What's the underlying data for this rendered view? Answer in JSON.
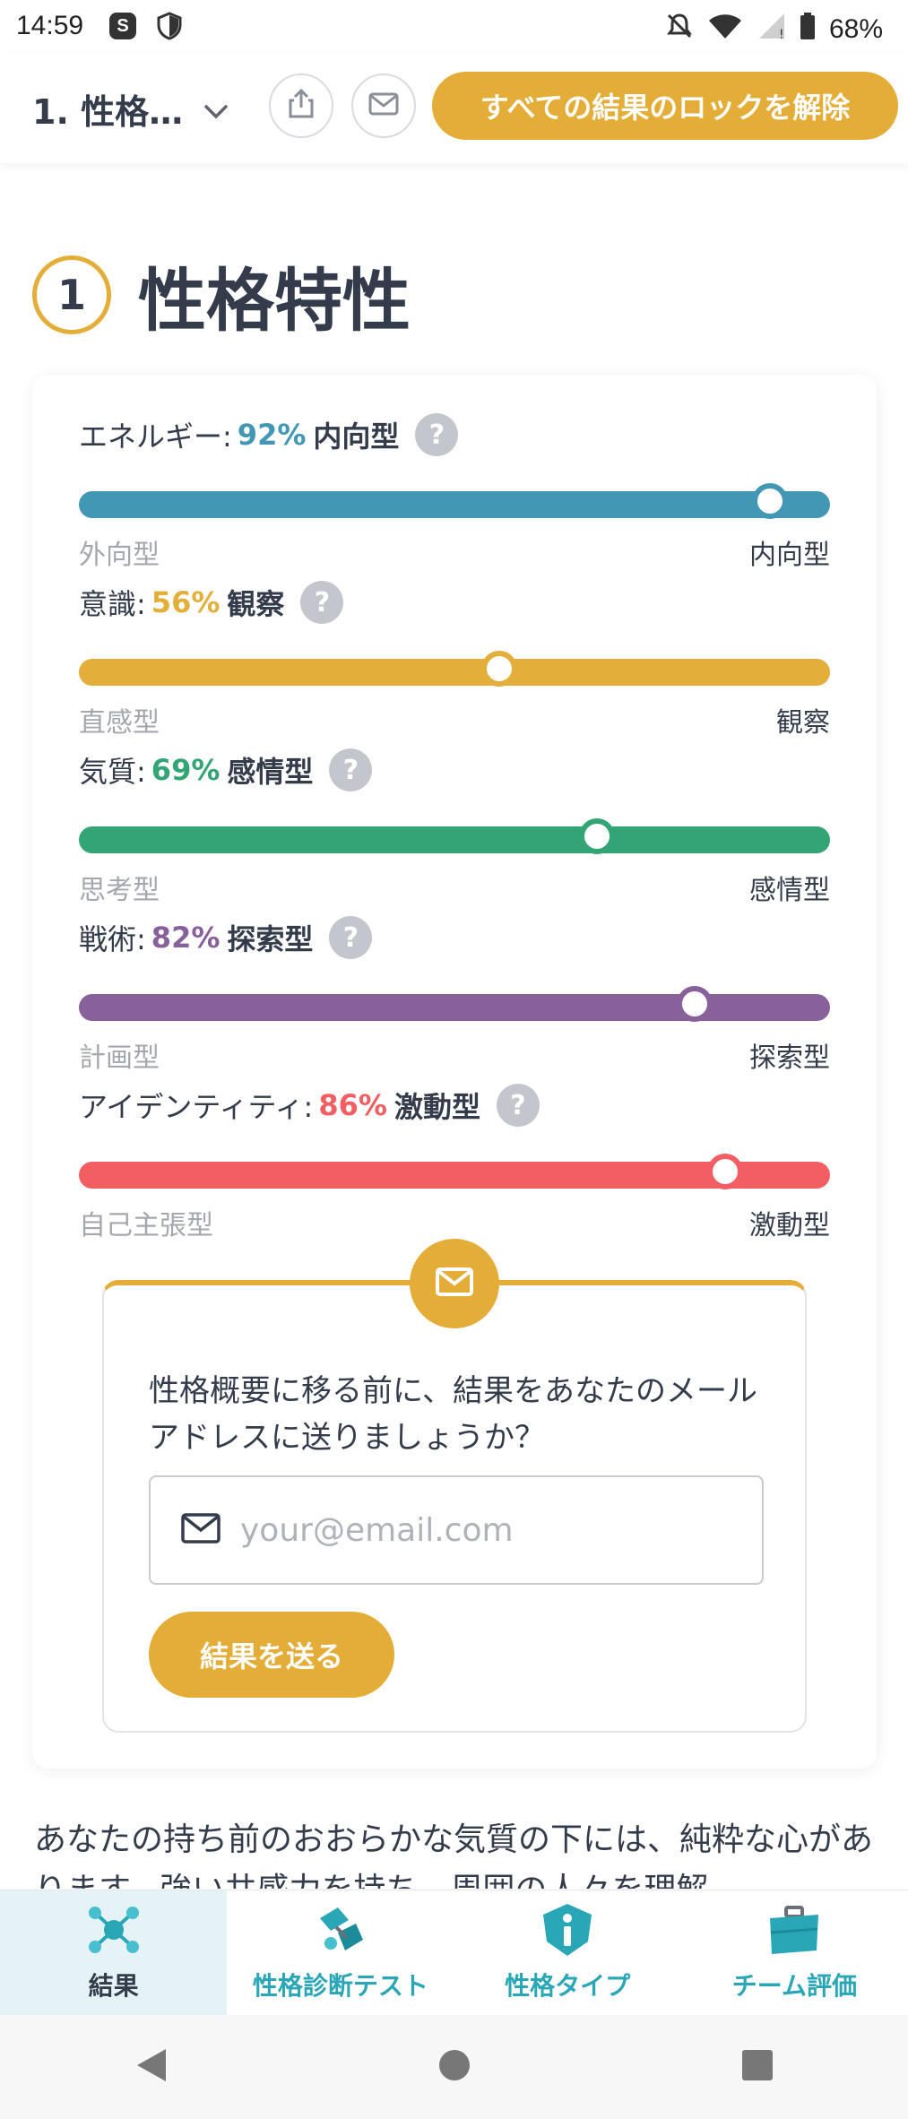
{
  "status_bar": {
    "time": "14:59",
    "app_badge": "S",
    "battery": "68%"
  },
  "top_bar": {
    "section_label": "1. 性格…",
    "unlock_label": "すべての結果のロックを解除"
  },
  "heading": {
    "number": "1",
    "title": "性格特性"
  },
  "traits": [
    {
      "name": "エネルギー:",
      "percent": "92%",
      "value": 92,
      "result": "内向型",
      "left": "外向型",
      "right": "内向型",
      "color": "#4298b4"
    },
    {
      "name": "意識:",
      "percent": "56%",
      "value": 56,
      "result": "観察",
      "left": "直感型",
      "right": "観察",
      "color": "#e4ae3a"
    },
    {
      "name": "気質:",
      "percent": "69%",
      "value": 69,
      "result": "感情型",
      "left": "思考型",
      "right": "感情型",
      "color": "#33a474"
    },
    {
      "name": "戦術:",
      "percent": "82%",
      "value": 82,
      "result": "探索型",
      "left": "計画型",
      "right": "探索型",
      "color": "#88619a"
    },
    {
      "name": "アイデンティティ:",
      "percent": "86%",
      "value": 86,
      "result": "激動型",
      "left": "自己主張型",
      "right": "激動型",
      "color": "#f25e62"
    }
  ],
  "help_glyph": "?",
  "email_prompt": {
    "text": "性格概要に移る前に、結果をあなたのメールアドレスに送りましょうか？",
    "placeholder": "your@email.com",
    "button": "結果を送る"
  },
  "description": "あなたの持ち前のおおらかな気質の下には、純粋な心があります。強い共感力を持ち、周囲の人々を理解",
  "tabs": [
    {
      "label": "結果",
      "icon": "molecule-icon",
      "active": true
    },
    {
      "label": "性格診断テスト",
      "icon": "test-icon",
      "active": false
    },
    {
      "label": "性格タイプ",
      "icon": "info-shield-icon",
      "active": false
    },
    {
      "label": "チーム評価",
      "icon": "briefcase-icon",
      "active": false
    }
  ],
  "colors": {
    "accent": "#e4ad37",
    "teal": "#2aa7b7",
    "text": "#343c4b"
  }
}
